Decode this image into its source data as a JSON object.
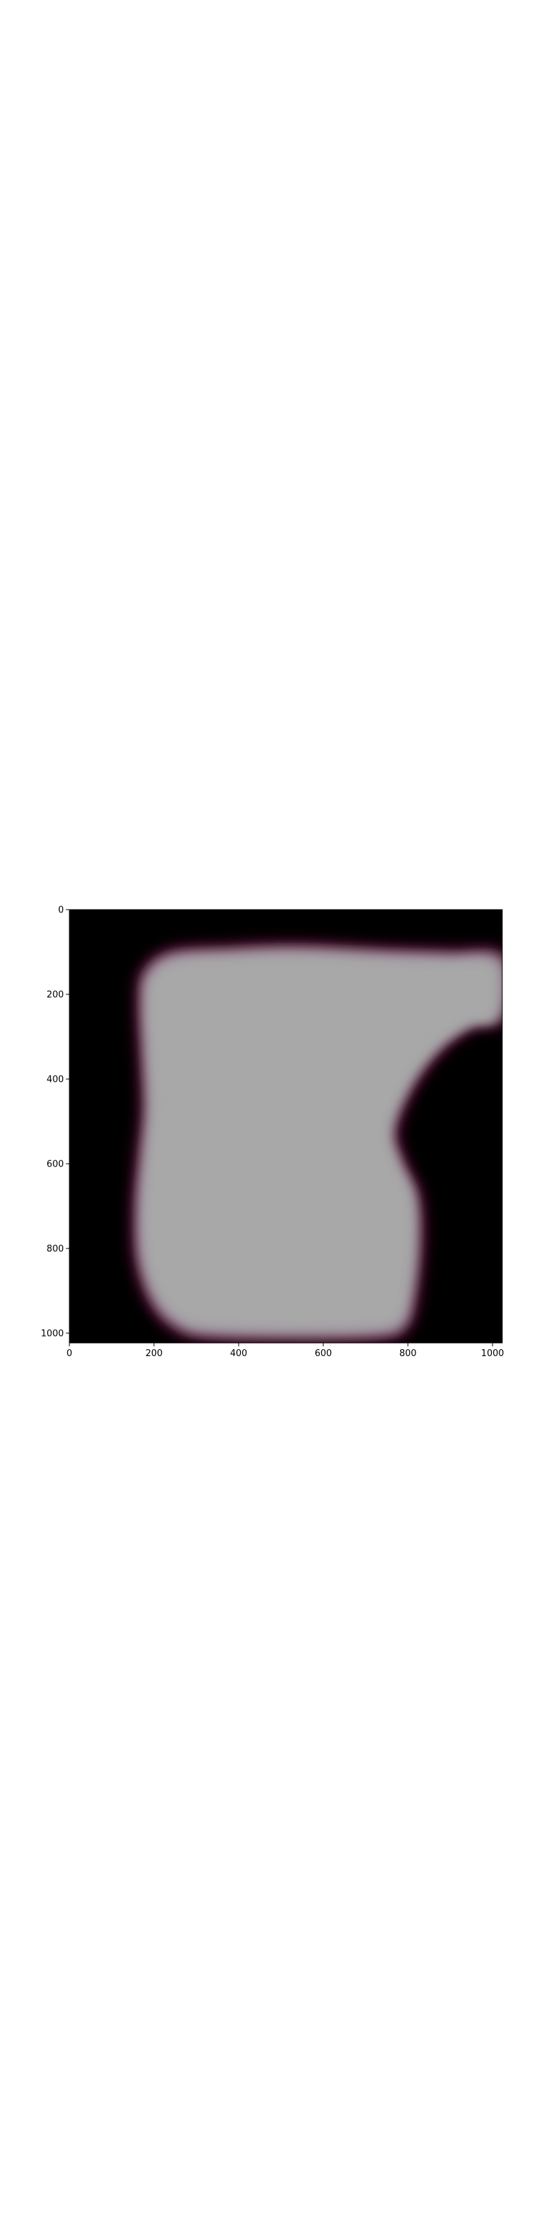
{
  "chart_data": {
    "type": "heatmap",
    "title": "",
    "xlabel": "",
    "ylabel": "",
    "xlim": [
      0,
      1023
    ],
    "ylim": [
      1023,
      0
    ],
    "y_axis_inverted": true,
    "x_ticks": [
      0,
      200,
      400,
      600,
      800,
      1000
    ],
    "y_ticks": [
      0,
      200,
      400,
      600,
      800,
      1000
    ],
    "x_tick_labels": [
      "0",
      "200",
      "400",
      "600",
      "800",
      "1000"
    ],
    "y_tick_labels": [
      "0",
      "200",
      "400",
      "600",
      "800",
      "1000"
    ],
    "colors": {
      "background": "#000000",
      "blob_fill": "#a8a8a8",
      "blob_edge_inner": "#9a8a9a",
      "blob_edge_outer": "#5a1030"
    },
    "blob_outline": [
      [
        180,
        150
      ],
      [
        240,
        105
      ],
      [
        380,
        95
      ],
      [
        540,
        90
      ],
      [
        760,
        100
      ],
      [
        900,
        105
      ],
      [
        1023,
        115
      ],
      [
        1023,
        250
      ],
      [
        960,
        265
      ],
      [
        880,
        320
      ],
      [
        810,
        410
      ],
      [
        765,
        520
      ],
      [
        785,
        600
      ],
      [
        820,
        680
      ],
      [
        825,
        800
      ],
      [
        810,
        930
      ],
      [
        790,
        985
      ],
      [
        740,
        1005
      ],
      [
        560,
        1010
      ],
      [
        330,
        1005
      ],
      [
        255,
        985
      ],
      [
        200,
        930
      ],
      [
        165,
        830
      ],
      [
        160,
        700
      ],
      [
        170,
        580
      ],
      [
        180,
        470
      ],
      [
        175,
        340
      ],
      [
        170,
        220
      ]
    ]
  }
}
